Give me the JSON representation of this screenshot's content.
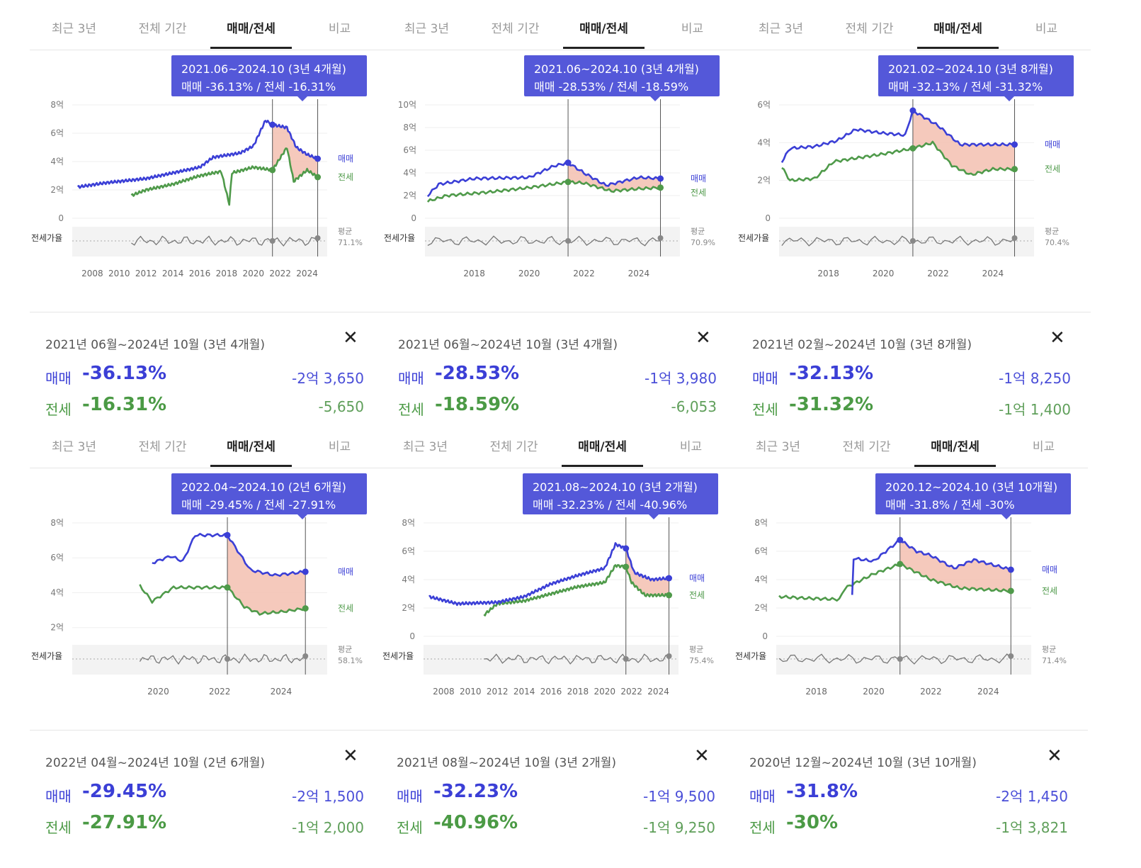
{
  "tabs": [
    "최근 3년",
    "전체 기간",
    "매매/전세",
    "비교"
  ],
  "active_tab": 2,
  "labels": {
    "sale": "매매",
    "jeonse": "전세",
    "ratio": "전세가율",
    "avg": "평균"
  },
  "colors": {
    "sale": "#3b3fd6",
    "jeonse": "#4f9a4a",
    "fill": "#f3c0b0",
    "accent": "#5458d9",
    "ratio": "#777777"
  },
  "panels": [
    {
      "tooltip": {
        "line1": "2021.06~2024.10 (3년 4개월)",
        "line2": "매매 -36.13%  /  전세 -16.31%"
      },
      "summary": {
        "period": "2021년 06월~2024년 10월 (3년 4개월)",
        "sale_pct": "-36.13%",
        "sale_amt": "-2억 3,650",
        "jeonse_pct": "-16.31%",
        "jeonse_amt": "-5,650"
      },
      "chart_data": {
        "type": "line",
        "ylim": [
          0,
          8
        ],
        "yticks": [
          "0",
          "2억",
          "4억",
          "6억",
          "8억"
        ],
        "xticks": [
          "2008",
          "2010",
          "2012",
          "2014",
          "2016",
          "2018",
          "2020",
          "2022",
          "2024"
        ],
        "xrange": [
          2006.5,
          2025.5
        ],
        "start": 2021.42,
        "end": 2024.79,
        "ratio_avg": "71.1%",
        "series": [
          {
            "name": "매매",
            "values": [
              [
                2006.9,
                2.2
              ],
              [
                2009,
                2.5
              ],
              [
                2012,
                2.8
              ],
              [
                2014,
                3.2
              ],
              [
                2016,
                3.6
              ],
              [
                2017,
                4.3
              ],
              [
                2019,
                4.6
              ],
              [
                2020,
                5.1
              ],
              [
                2020.9,
                6.9
              ],
              [
                2021.42,
                6.6
              ],
              [
                2022.5,
                6.4
              ],
              [
                2023.2,
                5.0
              ],
              [
                2024,
                4.5
              ],
              [
                2024.79,
                4.2
              ]
            ]
          },
          {
            "name": "전세",
            "values": [
              [
                2010.9,
                1.6
              ],
              [
                2012,
                2.0
              ],
              [
                2014,
                2.4
              ],
              [
                2016,
                3.0
              ],
              [
                2017.6,
                3.3
              ],
              [
                2018.2,
                1.0
              ],
              [
                2018.4,
                3.2
              ],
              [
                2020,
                3.6
              ],
              [
                2021.42,
                3.4
              ],
              [
                2022.5,
                5.0
              ],
              [
                2023,
                2.6
              ],
              [
                2024,
                3.4
              ],
              [
                2024.79,
                2.9
              ]
            ]
          }
        ]
      }
    },
    {
      "tooltip": {
        "line1": "2021.06~2024.10 (3년 4개월)",
        "line2": "매매 -28.53%  /  전세 -18.59%"
      },
      "summary": {
        "period": "2021년 06월~2024년 10월 (3년 4개월)",
        "sale_pct": "-28.53%",
        "sale_amt": "-1억 3,980",
        "jeonse_pct": "-18.59%",
        "jeonse_amt": "-6,053"
      },
      "chart_data": {
        "type": "line",
        "ylim": [
          0,
          10
        ],
        "yticks": [
          "0",
          "2억",
          "4억",
          "6억",
          "8억",
          "10억"
        ],
        "xticks": [
          "2018",
          "2020",
          "2022",
          "2024"
        ],
        "xrange": [
          2016.2,
          2025.5
        ],
        "start": 2021.42,
        "end": 2024.79,
        "ratio_avg": "70.9%",
        "series": [
          {
            "name": "매매",
            "values": [
              [
                2016.3,
                2.0
              ],
              [
                2016.7,
                3.0
              ],
              [
                2018,
                3.5
              ],
              [
                2020,
                3.6
              ],
              [
                2020.9,
                4.6
              ],
              [
                2021.42,
                4.9
              ],
              [
                2022,
                4.0
              ],
              [
                2022.8,
                2.9
              ],
              [
                2024,
                3.6
              ],
              [
                2024.79,
                3.5
              ]
            ]
          },
          {
            "name": "전세",
            "values": [
              [
                2016.3,
                1.5
              ],
              [
                2017,
                2.0
              ],
              [
                2018.5,
                2.3
              ],
              [
                2020,
                2.7
              ],
              [
                2021.42,
                3.2
              ],
              [
                2022,
                3.1
              ],
              [
                2023,
                2.4
              ],
              [
                2024,
                2.6
              ],
              [
                2024.79,
                2.7
              ]
            ]
          }
        ]
      }
    },
    {
      "tooltip": {
        "line1": "2021.02~2024.10 (3년 8개월)",
        "line2": "매매 -32.13%  /  전세 -31.32%"
      },
      "summary": {
        "period": "2021년 02월~2024년 10월 (3년 8개월)",
        "sale_pct": "-32.13%",
        "sale_amt": "-1억 8,250",
        "jeonse_pct": "-31.32%",
        "jeonse_amt": "-1억 1,400"
      },
      "chart_data": {
        "type": "line",
        "ylim": [
          0,
          6
        ],
        "yticks": [
          "0",
          "2억",
          "4억",
          "6억"
        ],
        "xticks": [
          "2018",
          "2020",
          "2022",
          "2024"
        ],
        "xrange": [
          2016.2,
          2025.5
        ],
        "start": 2021.08,
        "end": 2024.79,
        "ratio_avg": "70.4%",
        "series": [
          {
            "name": "매매",
            "values": [
              [
                2016.3,
                3.0
              ],
              [
                2016.6,
                3.7
              ],
              [
                2017.5,
                3.8
              ],
              [
                2018.3,
                4.1
              ],
              [
                2019,
                4.7
              ],
              [
                2020,
                4.5
              ],
              [
                2020.8,
                4.4
              ],
              [
                2021.08,
                5.7
              ],
              [
                2022,
                4.9
              ],
              [
                2022.8,
                3.9
              ],
              [
                2024,
                3.9
              ],
              [
                2024.79,
                3.9
              ]
            ]
          },
          {
            "name": "전세",
            "values": [
              [
                2016.3,
                2.7
              ],
              [
                2016.6,
                2.0
              ],
              [
                2017.5,
                2.1
              ],
              [
                2018.2,
                3.0
              ],
              [
                2020,
                3.4
              ],
              [
                2021.08,
                3.7
              ],
              [
                2021.8,
                4.0
              ],
              [
                2022.5,
                2.8
              ],
              [
                2023.2,
                2.3
              ],
              [
                2024,
                2.6
              ],
              [
                2024.79,
                2.6
              ]
            ]
          }
        ]
      }
    },
    {
      "tooltip": {
        "line1": "2022.04~2024.10 (2년 6개월)",
        "line2": "매매 -29.45%  /  전세 -27.91%"
      },
      "summary": {
        "period": "2022년 04월~2024년 10월 (2년 6개월)",
        "sale_pct": "-29.45%",
        "sale_amt": "-2억 1,500",
        "jeonse_pct": "-27.91%",
        "jeonse_amt": "-1억 2,000"
      },
      "chart_data": {
        "type": "line",
        "ylim": [
          1.5,
          8
        ],
        "yticks": [
          "2억",
          "4억",
          "6억",
          "8억"
        ],
        "xticks": [
          "2020",
          "2022",
          "2024"
        ],
        "xrange": [
          2017.2,
          2025.5
        ],
        "start": 2022.25,
        "end": 2024.79,
        "ratio_avg": "58.1%",
        "series": [
          {
            "name": "매매",
            "values": [
              [
                2019.8,
                5.7
              ],
              [
                2020.4,
                6.1
              ],
              [
                2020.8,
                5.8
              ],
              [
                2021.2,
                7.3
              ],
              [
                2022.25,
                7.3
              ],
              [
                2023,
                5.3
              ],
              [
                2023.8,
                5.0
              ],
              [
                2024.79,
                5.2
              ]
            ]
          },
          {
            "name": "전세",
            "values": [
              [
                2019.4,
                4.4
              ],
              [
                2019.8,
                3.5
              ],
              [
                2020.5,
                4.3
              ],
              [
                2022.25,
                4.3
              ],
              [
                2022.8,
                3.2
              ],
              [
                2023.3,
                2.8
              ],
              [
                2024,
                2.9
              ],
              [
                2024.79,
                3.1
              ]
            ]
          }
        ]
      }
    },
    {
      "tooltip": {
        "line1": "2021.08~2024.10 (3년 2개월)",
        "line2": "매매 -32.23%  /  전세 -40.96%"
      },
      "summary": {
        "period": "2021년 08월~2024년 10월 (3년 2개월)",
        "sale_pct": "-32.23%",
        "sale_amt": "-1억 9,500",
        "jeonse_pct": "-40.96%",
        "jeonse_amt": "-1억 9,250"
      },
      "chart_data": {
        "type": "line",
        "ylim": [
          0,
          8
        ],
        "yticks": [
          "0",
          "2억",
          "4억",
          "6억",
          "8억"
        ],
        "xticks": [
          "2008",
          "2010",
          "2012",
          "2014",
          "2016",
          "2018",
          "2020",
          "2022",
          "2024"
        ],
        "xrange": [
          2006.5,
          2025.5
        ],
        "start": 2021.58,
        "end": 2024.79,
        "ratio_avg": "75.4%",
        "series": [
          {
            "name": "매매",
            "values": [
              [
                2006.9,
                2.8
              ],
              [
                2009,
                2.3
              ],
              [
                2012,
                2.4
              ],
              [
                2014,
                2.8
              ],
              [
                2016,
                3.7
              ],
              [
                2018,
                4.3
              ],
              [
                2020,
                4.8
              ],
              [
                2020.8,
                6.5
              ],
              [
                2021.58,
                6.2
              ],
              [
                2022.2,
                4.5
              ],
              [
                2023.5,
                4.0
              ],
              [
                2024.79,
                4.1
              ]
            ]
          },
          {
            "name": "전세",
            "values": [
              [
                2011,
                1.5
              ],
              [
                2012,
                2.3
              ],
              [
                2014,
                2.5
              ],
              [
                2016,
                3.0
              ],
              [
                2018,
                3.5
              ],
              [
                2020,
                3.8
              ],
              [
                2020.8,
                5.0
              ],
              [
                2021.58,
                4.9
              ],
              [
                2022,
                3.8
              ],
              [
                2023,
                2.9
              ],
              [
                2024.79,
                2.9
              ]
            ]
          }
        ]
      }
    },
    {
      "tooltip": {
        "line1": "2020.12~2024.10 (3년 10개월)",
        "line2": "매매 -31.8%  /  전세 -30%"
      },
      "summary": {
        "period": "2020년 12월~2024년 10월 (3년 10개월)",
        "sale_pct": "-31.8%",
        "sale_amt": "-2억 1,450",
        "jeonse_pct": "-30%",
        "jeonse_amt": "-1억 3,821"
      },
      "chart_data": {
        "type": "line",
        "ylim": [
          0,
          8
        ],
        "yticks": [
          "0",
          "2억",
          "4억",
          "6억",
          "8억"
        ],
        "xticks": [
          "2018",
          "2020",
          "2022",
          "2024"
        ],
        "xrange": [
          2016.6,
          2025.5
        ],
        "start": 2020.92,
        "end": 2024.79,
        "ratio_avg": "71.4%",
        "series": [
          {
            "name": "매매",
            "values": [
              [
                2019.25,
                2.9
              ],
              [
                2019.3,
                5.5
              ],
              [
                2020,
                5.3
              ],
              [
                2020.92,
                6.8
              ],
              [
                2021.5,
                6.0
              ],
              [
                2022,
                5.7
              ],
              [
                2022.8,
                4.8
              ],
              [
                2023.5,
                5.4
              ],
              [
                2024.79,
                4.7
              ]
            ]
          },
          {
            "name": "전세",
            "values": [
              [
                2016.7,
                2.8
              ],
              [
                2017.5,
                2.7
              ],
              [
                2018.8,
                2.6
              ],
              [
                2019,
                3.4
              ],
              [
                2020,
                4.4
              ],
              [
                2020.92,
                5.1
              ],
              [
                2022,
                4.0
              ],
              [
                2023,
                3.4
              ],
              [
                2024.79,
                3.2
              ]
            ]
          }
        ]
      }
    }
  ]
}
